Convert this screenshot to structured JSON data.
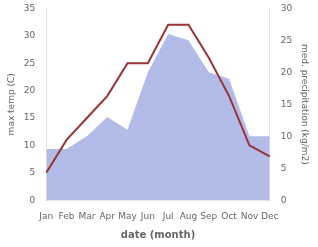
{
  "chart_data": {
    "type": "line",
    "categories": [
      "Jan",
      "Feb",
      "Mar",
      "Apr",
      "May",
      "Jun",
      "Jul",
      "Aug",
      "Sep",
      "Oct",
      "Nov",
      "Dec"
    ],
    "series": [
      {
        "type": "area",
        "axis": "y2",
        "color": "#b3bce8",
        "values": [
          8,
          8,
          10,
          13,
          11,
          20,
          26,
          25,
          20,
          19,
          10,
          10
        ]
      },
      {
        "type": "line",
        "color": "#993333",
        "values": [
          5,
          11,
          15,
          19,
          25,
          25,
          32,
          32,
          26,
          19,
          10,
          8
        ]
      }
    ],
    "xlabel": "date (month)",
    "ylabel": "max temp (C)",
    "y2label": "med. precipitation (kg/m2)",
    "ylim": [
      0,
      35
    ],
    "yticks": [
      0,
      5,
      10,
      15,
      20,
      25,
      30,
      35
    ],
    "y2lim": [
      0,
      30
    ],
    "y2ticks": [
      0,
      5,
      10,
      15,
      20,
      25,
      30
    ],
    "grid": false
  }
}
